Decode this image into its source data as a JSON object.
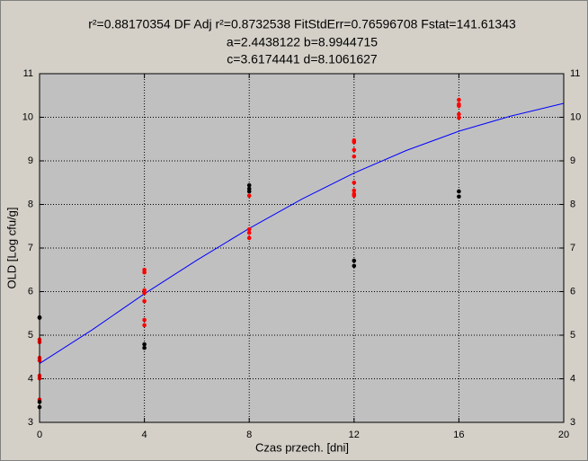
{
  "chart_data": {
    "type": "scatter",
    "title_lines": [
      "r²=0.88170354  DF Adj r²=0.8732538  FitStdErr=0.76596708  Fstat=141.61343",
      "a=2.4438122 b=8.9944715",
      "c=3.6174441 d=8.1061627"
    ],
    "x_label": "Czas przech. [dni]",
    "y_label": "OLD [Log cfu/g]",
    "xlim": [
      0,
      20
    ],
    "xticks": [
      0,
      4,
      8,
      12,
      16,
      20
    ],
    "ylim": [
      3,
      11
    ],
    "yticks": [
      3,
      4,
      5,
      6,
      7,
      8,
      9,
      10,
      11
    ],
    "grid": true,
    "series": [
      {
        "type": "scatter",
        "color": "#ff0000",
        "x": [
          0,
          0,
          0,
          0,
          0,
          0,
          0,
          4,
          4,
          4,
          4,
          4,
          4,
          4,
          8,
          8,
          8,
          8,
          12,
          12,
          12,
          12,
          12,
          12,
          12,
          12,
          16,
          16,
          16,
          16,
          16
        ],
        "values": [
          4.9,
          4.84,
          4.48,
          4.42,
          4.07,
          4.01,
          3.52,
          6.5,
          6.44,
          6.03,
          5.97,
          5.78,
          5.35,
          5.23,
          8.2,
          7.43,
          7.35,
          7.23,
          9.47,
          9.43,
          9.25,
          9.1,
          8.5,
          8.32,
          8.24,
          8.2,
          10.4,
          10.3,
          10.26,
          10.07,
          9.99
        ]
      },
      {
        "type": "scatter",
        "color": "#000000",
        "x": [
          0,
          0,
          0,
          0,
          4,
          4,
          8,
          8,
          8,
          12,
          12,
          16,
          16
        ],
        "values": [
          5.41,
          5.4,
          3.47,
          3.35,
          4.79,
          4.71,
          8.44,
          8.36,
          8.3,
          6.71,
          6.59,
          8.3,
          8.18
        ]
      },
      {
        "type": "line",
        "color": "#0000ff",
        "x": [
          0,
          2,
          4,
          6,
          8,
          10,
          12,
          14,
          16,
          18,
          20
        ],
        "values": [
          4.35,
          5.12,
          5.95,
          6.72,
          7.45,
          8.12,
          8.72,
          9.24,
          9.68,
          10.03,
          10.32
        ]
      }
    ]
  }
}
